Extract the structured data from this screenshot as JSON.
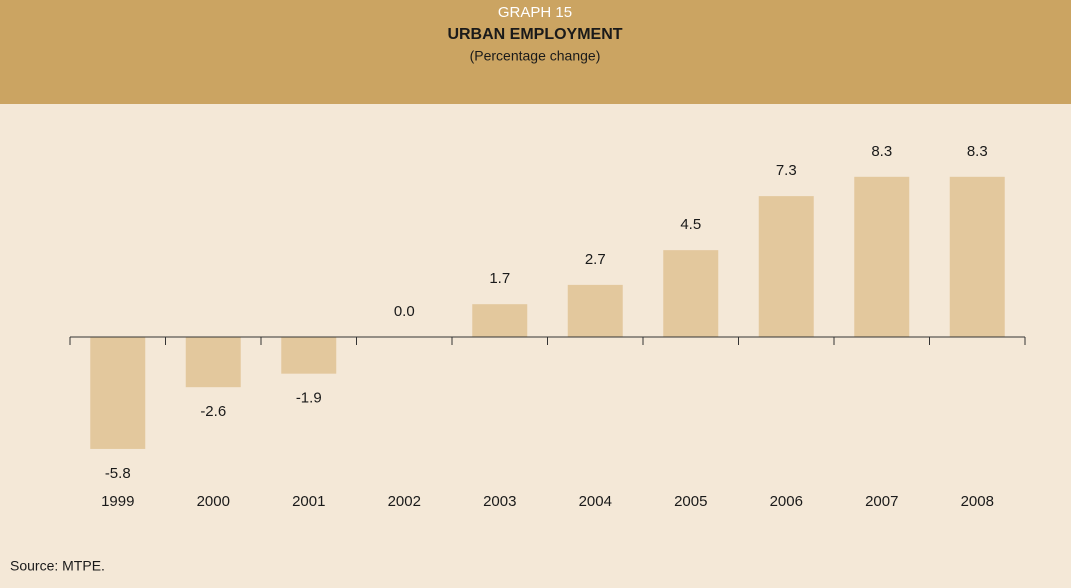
{
  "chart_data": {
    "type": "bar",
    "header": "GRAPH 15",
    "title": "URBAN EMPLOYMENT",
    "subtitle": "(Percentage change)",
    "categories": [
      "1999",
      "2000",
      "2001",
      "2002",
      "2003",
      "2004",
      "2005",
      "2006",
      "2007",
      "2008"
    ],
    "values": [
      -5.8,
      -2.6,
      -1.9,
      0.0,
      1.7,
      2.7,
      4.5,
      7.3,
      8.3,
      8.3
    ],
    "value_labels": [
      "-5.8",
      "-2.6",
      "-1.9",
      "0.0",
      "1.7",
      "2.7",
      "4.5",
      "7.3",
      "8.3",
      "8.3"
    ],
    "color": "#e3c89d",
    "source": "Source: MTPE."
  }
}
